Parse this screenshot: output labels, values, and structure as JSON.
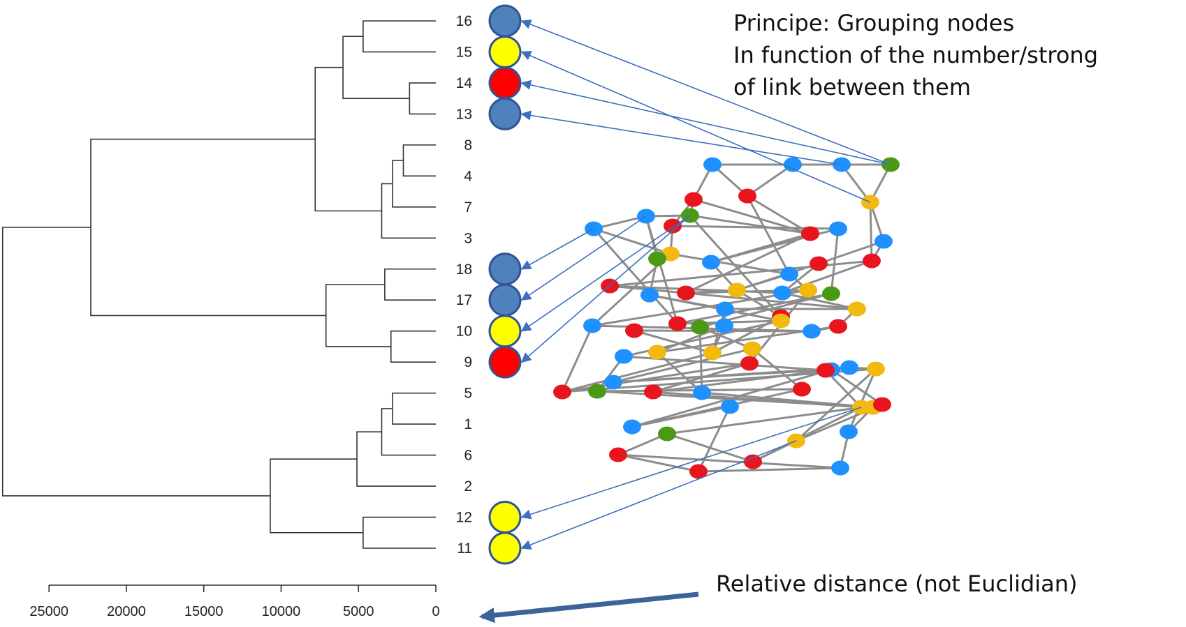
{
  "principle": {
    "lines": [
      "Principe: Grouping nodes",
      "In function of the number/strong",
      "of link between them"
    ]
  },
  "axis_note": "Relative distance (not Euclidian)",
  "colors": {
    "blue": "#4f81bd",
    "yellow": "#ffff00",
    "red": "#ff0000",
    "node_outline": "#2f5597",
    "arrow": "#3c6fbf",
    "net_blue": "#1e90ff",
    "net_red": "#e8141e",
    "net_yellow": "#f2b90f",
    "net_green": "#4a9a16",
    "edge": "#8c8c8c",
    "tree": "#333333"
  },
  "dendrogram": {
    "leaves": [
      {
        "label": "16",
        "circle": "blue"
      },
      {
        "label": "15",
        "circle": "yellow"
      },
      {
        "label": "14",
        "circle": "red"
      },
      {
        "label": "13",
        "circle": "blue"
      },
      {
        "label": "8"
      },
      {
        "label": "4"
      },
      {
        "label": "7"
      },
      {
        "label": "3"
      },
      {
        "label": "18",
        "circle": "blue"
      },
      {
        "label": "17",
        "circle": "blue"
      },
      {
        "label": "10",
        "circle": "yellow"
      },
      {
        "label": "9",
        "circle": "red"
      },
      {
        "label": "5"
      },
      {
        "label": "1"
      },
      {
        "label": "6"
      },
      {
        "label": "2"
      },
      {
        "label": "12",
        "circle": "yellow"
      },
      {
        "label": "11",
        "circle": "yellow"
      }
    ],
    "merges": [
      {
        "a": "16",
        "b": "15",
        "height": 4700
      },
      {
        "a": "14",
        "b": "13",
        "height": 1700
      },
      {
        "a": "m1",
        "b": "m2",
        "height": 6000
      },
      {
        "a": "8",
        "b": "4",
        "height": 2100
      },
      {
        "a": "m4",
        "b": "7",
        "height": 2800
      },
      {
        "a": "m5",
        "b": "3",
        "height": 3500
      },
      {
        "a": "m3",
        "b": "m6",
        "height": 7800
      },
      {
        "a": "18",
        "b": "17",
        "height": 3300
      },
      {
        "a": "10",
        "b": "9",
        "height": 2900
      },
      {
        "a": "m8",
        "b": "m9",
        "height": 7100
      },
      {
        "a": "m7",
        "b": "m10",
        "height": 22300
      },
      {
        "a": "5",
        "b": "1",
        "height": 2800
      },
      {
        "a": "m12",
        "b": "6",
        "height": 3500
      },
      {
        "a": "m13",
        "b": "2",
        "height": 5100
      },
      {
        "a": "12",
        "b": "11",
        "height": 4700
      },
      {
        "a": "m14",
        "b": "m15",
        "height": 10700
      },
      {
        "a": "m11",
        "b": "m16",
        "height": 28000
      }
    ],
    "axis_ticks": [
      "25000",
      "20000",
      "15000",
      "10000",
      "5000",
      "0"
    ]
  },
  "network": {
    "nodes": [
      [
        "n1",
        "blue"
      ],
      [
        "n2",
        "blue"
      ],
      [
        "n3",
        "blue"
      ],
      [
        "n4",
        "green"
      ],
      [
        "n5",
        "red"
      ],
      [
        "n6",
        "red"
      ],
      [
        "n7",
        "yellow"
      ],
      [
        "n8",
        "blue"
      ],
      [
        "n9",
        "blue"
      ],
      [
        "n10",
        "red"
      ],
      [
        "n11",
        "green"
      ],
      [
        "n12",
        "blue"
      ],
      [
        "n13",
        "red"
      ],
      [
        "n14",
        "blue"
      ],
      [
        "n15",
        "red"
      ],
      [
        "n16",
        "yellow"
      ],
      [
        "n17",
        "green"
      ],
      [
        "n18",
        "blue"
      ],
      [
        "n19",
        "red"
      ],
      [
        "n20",
        "blue"
      ],
      [
        "n21",
        "red"
      ],
      [
        "n22",
        "blue"
      ],
      [
        "n23",
        "red"
      ],
      [
        "n24",
        "yellow"
      ],
      [
        "n25",
        "blue"
      ],
      [
        "n26",
        "yellow"
      ],
      [
        "n27",
        "green"
      ],
      [
        "n28",
        "yellow"
      ],
      [
        "n29",
        "blue"
      ],
      [
        "n30",
        "red"
      ],
      [
        "n31",
        "blue"
      ],
      [
        "n32",
        "red"
      ],
      [
        "n33",
        "red"
      ],
      [
        "n34",
        "green"
      ],
      [
        "n35",
        "blue"
      ],
      [
        "n36",
        "yellow"
      ],
      [
        "n37",
        "blue"
      ],
      [
        "n38",
        "red"
      ],
      [
        "n39",
        "yellow"
      ],
      [
        "n40",
        "yellow"
      ],
      [
        "n41",
        "red"
      ],
      [
        "n42",
        "blue"
      ],
      [
        "n43",
        "yellow"
      ],
      [
        "n44",
        "blue"
      ],
      [
        "n45",
        "red"
      ],
      [
        "n46",
        "green"
      ],
      [
        "n47",
        "red"
      ],
      [
        "n48",
        "blue"
      ],
      [
        "n49",
        "red"
      ],
      [
        "n50",
        "blue"
      ],
      [
        "n51",
        "red"
      ],
      [
        "n52",
        "blue"
      ],
      [
        "n53",
        "yellow"
      ],
      [
        "n54",
        "yellow"
      ],
      [
        "n55",
        "red"
      ],
      [
        "n56",
        "yellow"
      ],
      [
        "n57",
        "blue"
      ],
      [
        "n58",
        "green"
      ],
      [
        "n59",
        "blue"
      ],
      [
        "n60",
        "yellow"
      ],
      [
        "n61",
        "blue"
      ],
      [
        "n62",
        "red"
      ],
      [
        "n63",
        "red"
      ],
      [
        "n64",
        "red"
      ],
      [
        "n65",
        "blue"
      ]
    ],
    "edges": [
      [
        "n1",
        "n5"
      ],
      [
        "n1",
        "n6"
      ],
      [
        "n2",
        "n6"
      ],
      [
        "n2",
        "n3"
      ],
      [
        "n3",
        "n4"
      ],
      [
        "n3",
        "n7"
      ],
      [
        "n4",
        "n7"
      ],
      [
        "n5",
        "n11"
      ],
      [
        "n5",
        "n10"
      ],
      [
        "n6",
        "n13"
      ],
      [
        "n7",
        "n14"
      ],
      [
        "n7",
        "n15"
      ],
      [
        "n8",
        "n9"
      ],
      [
        "n8",
        "n16"
      ],
      [
        "n9",
        "n11"
      ],
      [
        "n9",
        "n17"
      ],
      [
        "n10",
        "n16"
      ],
      [
        "n10",
        "n12"
      ],
      [
        "n11",
        "n13"
      ],
      [
        "n12",
        "n18"
      ],
      [
        "n13",
        "n18"
      ],
      [
        "n13",
        "n23"
      ],
      [
        "n14",
        "n15"
      ],
      [
        "n14",
        "n19"
      ],
      [
        "n15",
        "n21"
      ],
      [
        "n16",
        "n17"
      ],
      [
        "n16",
        "n20"
      ],
      [
        "n17",
        "n22"
      ],
      [
        "n18",
        "n24"
      ],
      [
        "n19",
        "n24"
      ],
      [
        "n19",
        "n25"
      ],
      [
        "n20",
        "n26"
      ],
      [
        "n21",
        "n25"
      ],
      [
        "n21",
        "n28"
      ],
      [
        "n22",
        "n29"
      ],
      [
        "n23",
        "n24"
      ],
      [
        "n23",
        "n26"
      ],
      [
        "n24",
        "n30"
      ],
      [
        "n25",
        "n28"
      ],
      [
        "n26",
        "n31"
      ],
      [
        "n27",
        "n33"
      ],
      [
        "n27",
        "n34"
      ],
      [
        "n28",
        "n29"
      ],
      [
        "n29",
        "n35"
      ],
      [
        "n30",
        "n36"
      ],
      [
        "n31",
        "n37"
      ],
      [
        "n32",
        "n37"
      ],
      [
        "n32",
        "n40"
      ],
      [
        "n33",
        "n36"
      ],
      [
        "n34",
        "n39"
      ],
      [
        "n35",
        "n40"
      ],
      [
        "n36",
        "n42"
      ],
      [
        "n37",
        "n38"
      ],
      [
        "n38",
        "n43"
      ],
      [
        "n39",
        "n44"
      ],
      [
        "n40",
        "n45"
      ],
      [
        "n41",
        "n45"
      ],
      [
        "n41",
        "n47"
      ],
      [
        "n42",
        "n46"
      ],
      [
        "n43",
        "n48"
      ],
      [
        "n44",
        "n50"
      ],
      [
        "n45",
        "n53"
      ],
      [
        "n46",
        "n49"
      ],
      [
        "n47",
        "n52"
      ],
      [
        "n48",
        "n54"
      ],
      [
        "n49",
        "n57"
      ],
      [
        "n50",
        "n55"
      ],
      [
        "n51",
        "n56"
      ],
      [
        "n52",
        "n53"
      ],
      [
        "n53",
        "n60"
      ],
      [
        "n54",
        "n61"
      ],
      [
        "n55",
        "n58"
      ],
      [
        "n56",
        "n63"
      ],
      [
        "n57",
        "n59"
      ],
      [
        "n58",
        "n62"
      ],
      [
        "n59",
        "n64"
      ],
      [
        "n60",
        "n63"
      ],
      [
        "n61",
        "n65"
      ],
      [
        "n62",
        "n65"
      ],
      [
        "n64",
        "n65"
      ],
      [
        "n11",
        "n30"
      ],
      [
        "n6",
        "n20"
      ],
      [
        "n12",
        "n27"
      ],
      [
        "n9",
        "n33"
      ],
      [
        "n22",
        "n36"
      ],
      [
        "n28",
        "n38"
      ],
      [
        "n31",
        "n45"
      ],
      [
        "n42",
        "n51"
      ],
      [
        "n44",
        "n52"
      ],
      [
        "n46",
        "n54"
      ],
      [
        "n50",
        "n57"
      ],
      [
        "n55",
        "n60"
      ],
      [
        "n35",
        "n43"
      ],
      [
        "n39",
        "n49"
      ],
      [
        "n47",
        "n56"
      ],
      [
        "n58",
        "n63"
      ],
      [
        "n62",
        "n64"
      ],
      [
        "n8",
        "n33"
      ],
      [
        "n15",
        "n25"
      ],
      [
        "n26",
        "n41"
      ],
      [
        "n29",
        "n40"
      ],
      [
        "n34",
        "n48"
      ],
      [
        "n53",
        "n61"
      ],
      [
        "n5",
        "n13"
      ],
      [
        "n1",
        "n2"
      ],
      [
        "n20",
        "n24"
      ],
      [
        "n30",
        "n40"
      ],
      [
        "n16",
        "n31"
      ]
    ]
  },
  "mappings": [
    {
      "from": "n4",
      "to": "16"
    },
    {
      "from": "n7",
      "to": "15"
    },
    {
      "from": "n4",
      "to": "14"
    },
    {
      "from": "n3",
      "to": "13"
    },
    {
      "from": "n8",
      "to": "18"
    },
    {
      "from": "n9",
      "to": "17"
    },
    {
      "from": "n11",
      "to": "10"
    },
    {
      "from": "n11",
      "to": "9"
    },
    {
      "from": "n56",
      "to": "12"
    },
    {
      "from": "n60",
      "to": "11"
    }
  ]
}
